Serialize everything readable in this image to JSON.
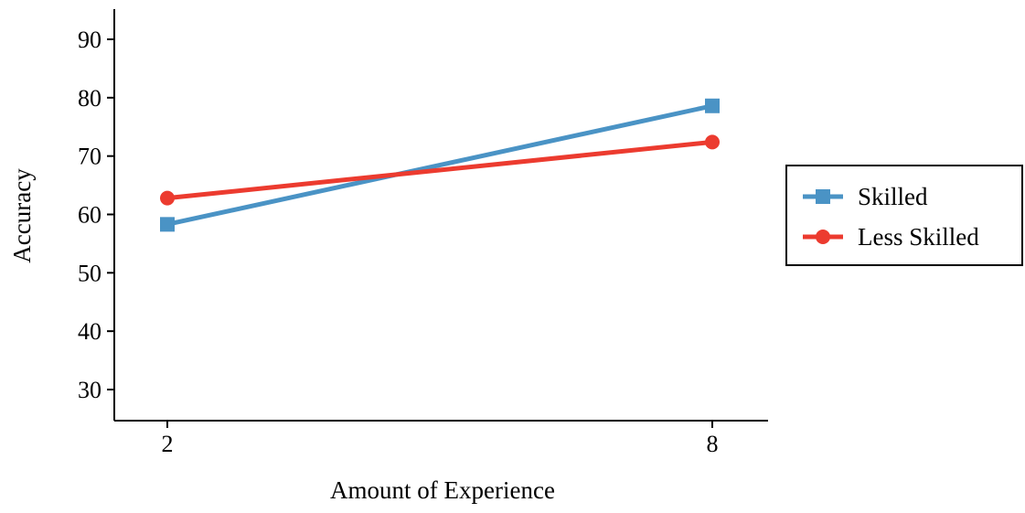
{
  "chart_data": {
    "type": "line",
    "title": "",
    "xlabel": "Amount of Experience",
    "ylabel": "Accuracy",
    "x": [
      2,
      8
    ],
    "x_tick_labels": [
      "2",
      "8"
    ],
    "ylim": [
      25,
      95
    ],
    "y_ticks": [
      30,
      40,
      50,
      60,
      70,
      80,
      90
    ],
    "grid": false,
    "legend_position": "right",
    "series": [
      {
        "name": "Skilled",
        "values": [
          58.3,
          78.6
        ],
        "color": "#4a93c5",
        "marker": "square"
      },
      {
        "name": "Less Skilled",
        "values": [
          62.8,
          72.4
        ],
        "color": "#ec3b2f",
        "marker": "circle"
      }
    ]
  }
}
